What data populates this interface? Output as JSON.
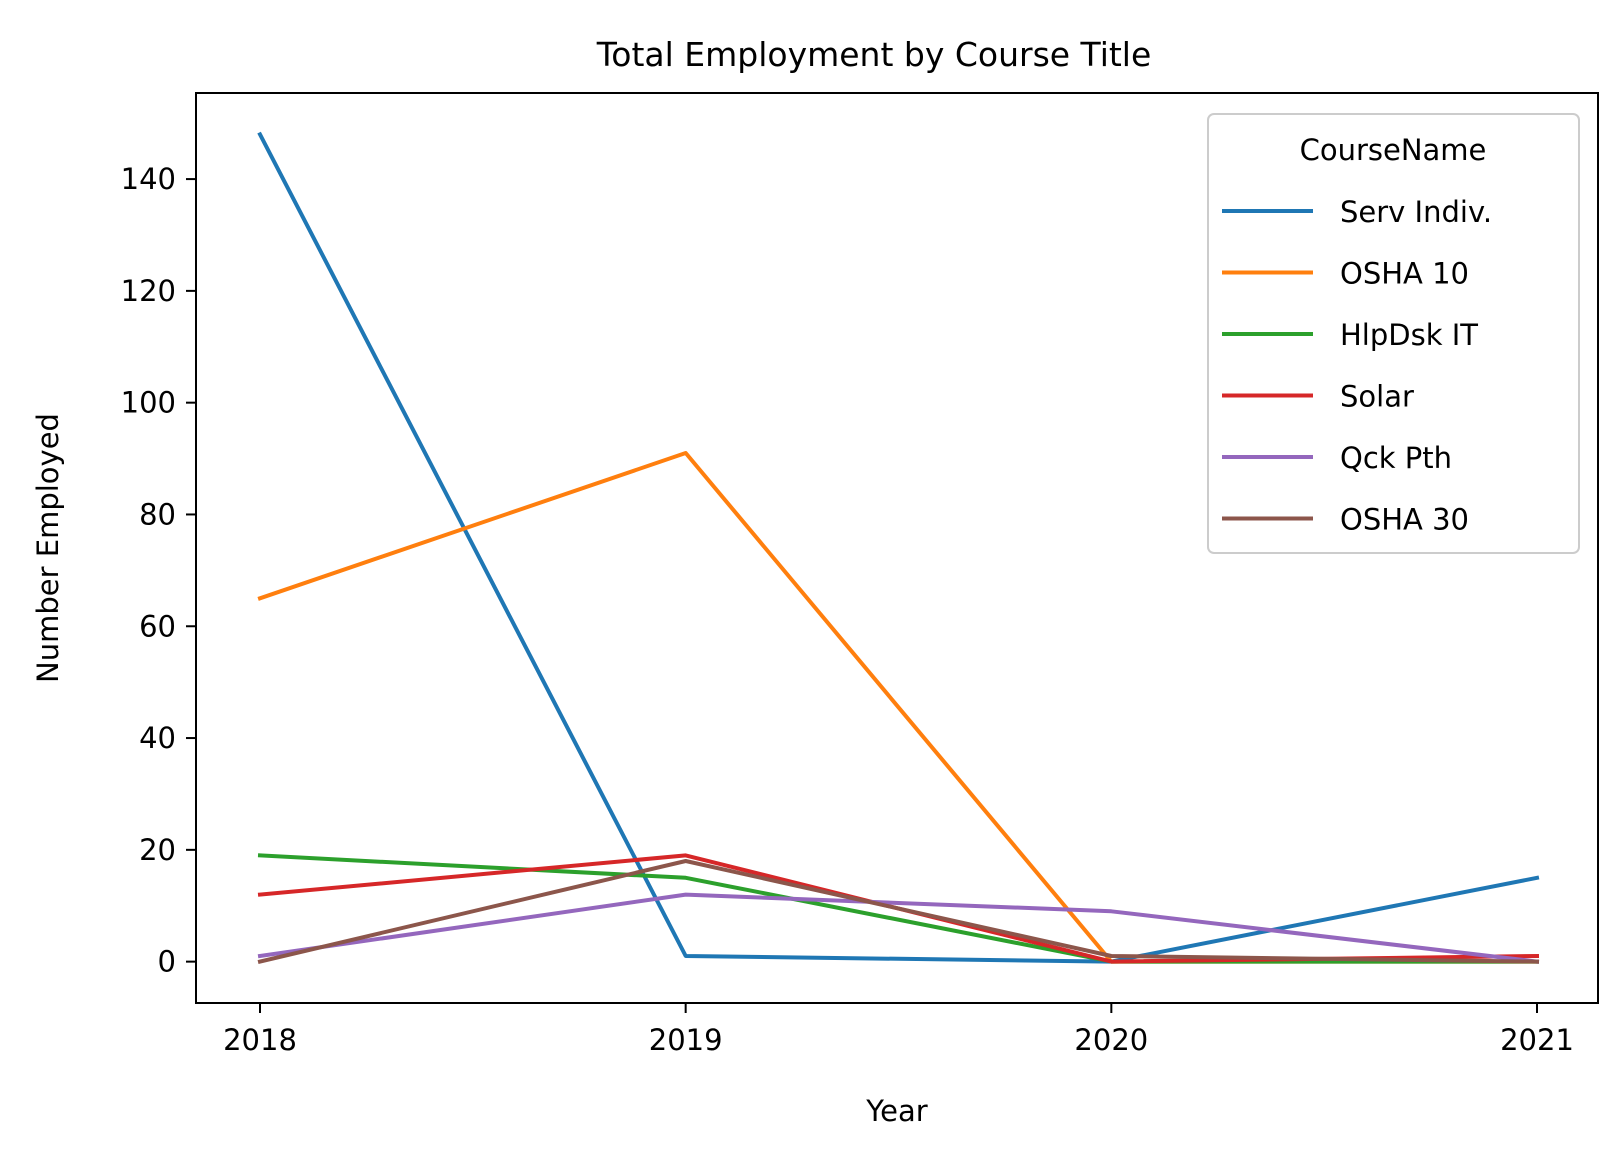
{
  "chart_data": {
    "type": "line",
    "title": "Total Employment by Course Title",
    "xlabel": "Year",
    "ylabel": "Number Employed",
    "x": [
      "2018",
      "2019",
      "2020",
      "2021"
    ],
    "ylim": [
      -7.4,
      155.4
    ],
    "yticks": [
      0,
      20,
      40,
      60,
      80,
      100,
      120,
      140
    ],
    "grid": false,
    "legend": {
      "title": "CourseName",
      "position": "top-right"
    },
    "series": [
      {
        "name": "Serv Indiv.",
        "color": "#1f77b4",
        "values": [
          148,
          1,
          0,
          15
        ]
      },
      {
        "name": "OSHA 10",
        "color": "#ff7f0e",
        "values": [
          65,
          91,
          0,
          0
        ]
      },
      {
        "name": "HlpDsk IT",
        "color": "#2ca02c",
        "values": [
          19,
          15,
          0,
          0
        ]
      },
      {
        "name": "Solar",
        "color": "#d62728",
        "values": [
          12,
          19,
          0,
          1
        ]
      },
      {
        "name": "Qck Pth",
        "color": "#9467bd",
        "values": [
          1,
          12,
          9,
          0
        ]
      },
      {
        "name": "OSHA 30",
        "color": "#8c564b",
        "values": [
          0,
          18,
          1,
          0
        ]
      }
    ]
  }
}
